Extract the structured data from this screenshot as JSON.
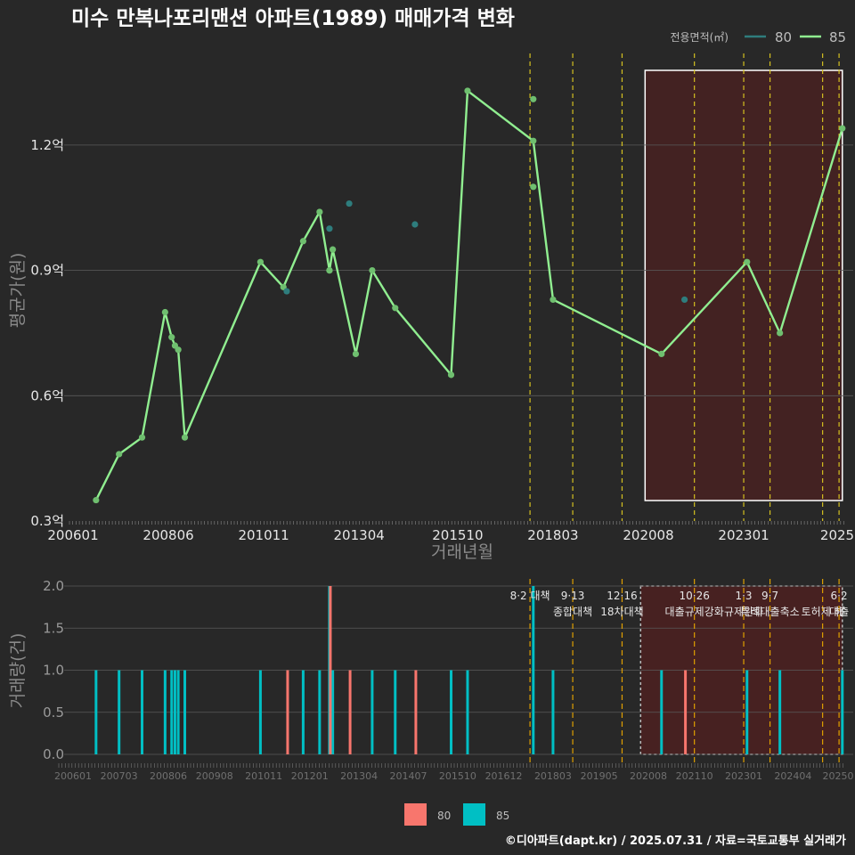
{
  "title": "미수 만복나포리맨션 아파트(1989) 매매가격 변화",
  "caption": "©디아파트(dapt.kr) / 2025.07.31 / 자료=국토교통부 실거래가",
  "colors": {
    "background": "#282828",
    "line85": "#90ee90",
    "point80": "#2e7d7d",
    "bar80": "#f8766d",
    "bar85": "#00bfc4",
    "highlight": "#4a2020",
    "policy": "#d4c020"
  },
  "chart_data": [
    {
      "type": "line",
      "xlabel": "거래년월",
      "ylabel": "평균가(원)",
      "ylim": [
        0.3,
        1.3
      ],
      "x_ticks": [
        "200601",
        "200806",
        "201011",
        "201304",
        "201510",
        "201803",
        "202008",
        "202301",
        "2025"
      ],
      "y_ticks": [
        "0.3억",
        "0.6억",
        "0.9억",
        "1.2억"
      ],
      "legend": {
        "title": "전용면적(㎡)",
        "entries": [
          "80",
          "85"
        ],
        "position": "top-right"
      },
      "series": [
        {
          "name": "85",
          "points": [
            [
              "2006-08",
              0.35
            ],
            [
              "2007-03",
              0.46
            ],
            [
              "2007-10",
              0.5
            ],
            [
              "2008-05",
              0.8
            ],
            [
              "2008-07",
              0.74
            ],
            [
              "2008-08",
              0.72
            ],
            [
              "2008-09",
              0.71
            ],
            [
              "2008-11",
              0.5
            ],
            [
              "2010-10",
              0.92
            ],
            [
              "2011-05",
              0.86
            ],
            [
              "2011-11",
              0.97
            ],
            [
              "2012-04",
              1.04
            ],
            [
              "2012-07",
              0.9
            ],
            [
              "2012-08",
              0.95
            ],
            [
              "2013-03",
              0.7
            ],
            [
              "2013-08",
              0.9
            ],
            [
              "2014-03",
              0.81
            ],
            [
              "2015-08",
              0.65
            ],
            [
              "2016-01",
              1.33
            ],
            [
              "2017-09",
              1.21
            ],
            [
              "2018-03",
              0.83
            ],
            [
              "2020-12",
              0.7
            ],
            [
              "2023-02",
              0.92
            ],
            [
              "2023-12",
              0.75
            ],
            [
              "2025-07",
              1.24
            ]
          ],
          "extra_points": [
            [
              "2017-09",
              1.31
            ],
            [
              "2017-09",
              1.1
            ],
            [
              "2012-07",
              0.9
            ]
          ]
        },
        {
          "name": "80",
          "points": [
            [
              "2011-06",
              0.85
            ],
            [
              "2012-07",
              1.0
            ],
            [
              "2013-01",
              1.06
            ],
            [
              "2014-09",
              1.01
            ],
            [
              "2021-07",
              0.83
            ]
          ]
        }
      ],
      "highlight_range": [
        "2020-07",
        "2025-07"
      ],
      "policy_lines": [
        "2017-08",
        "2018-09",
        "2019-12",
        "2021-10",
        "2023-01",
        "2023-09",
        "2025-01",
        "2025-06"
      ]
    },
    {
      "type": "bar",
      "ylabel": "거래량(건)",
      "ylim": [
        0,
        2
      ],
      "y_ticks": [
        "0.0",
        "0.5",
        "1.0",
        "1.5",
        "2.0"
      ],
      "x_ticks": [
        "200601",
        "200703",
        "200806",
        "200908",
        "201011",
        "201201",
        "201304",
        "201407",
        "201510",
        "201612",
        "201803",
        "201905",
        "202008",
        "202110",
        "202301",
        "202404",
        "20250"
      ],
      "legend": {
        "entries": [
          "80",
          "85"
        ],
        "position": "bottom"
      },
      "series": [
        {
          "name": "85",
          "bars": [
            [
              "2006-08",
              1
            ],
            [
              "2007-03",
              1
            ],
            [
              "2007-10",
              1
            ],
            [
              "2008-05",
              1
            ],
            [
              "2008-07",
              1
            ],
            [
              "2008-08",
              1
            ],
            [
              "2008-09",
              1
            ],
            [
              "2008-11",
              1
            ],
            [
              "2010-10",
              1
            ],
            [
              "2011-11",
              1
            ],
            [
              "2012-04",
              1
            ],
            [
              "2012-07",
              2
            ],
            [
              "2012-08",
              1
            ],
            [
              "2013-08",
              1
            ],
            [
              "2014-03",
              1
            ],
            [
              "2015-08",
              1
            ],
            [
              "2016-01",
              1
            ],
            [
              "2017-09",
              2
            ],
            [
              "2018-03",
              1
            ],
            [
              "2020-12",
              1
            ],
            [
              "2023-02",
              1
            ],
            [
              "2023-12",
              1
            ],
            [
              "2025-07",
              1
            ]
          ]
        },
        {
          "name": "80",
          "bars": [
            [
              "2011-06",
              1
            ],
            [
              "2012-07",
              2
            ],
            [
              "2013-01",
              1
            ],
            [
              "2014-09",
              1
            ],
            [
              "2021-07",
              1
            ]
          ]
        }
      ],
      "policy_labels": [
        {
          "date": "2017-08",
          "lines": [
            "8·2 대책"
          ]
        },
        {
          "date": "2018-09",
          "lines": [
            "9·13",
            "종합대책"
          ]
        },
        {
          "date": "2019-12",
          "lines": [
            "12·16",
            "18차대책"
          ]
        },
        {
          "date": "2021-10",
          "lines": [
            "10·26",
            "대출규제강화"
          ]
        },
        {
          "date": "2023-01",
          "lines": [
            "1·3",
            "규제완화"
          ]
        },
        {
          "date": "2023-09",
          "lines": [
            "9·7",
            "특례대출축소"
          ]
        },
        {
          "date": "2025-01",
          "lines": [
            "",
            "토허제 해"
          ]
        },
        {
          "date": "2025-06",
          "lines": [
            "6·2",
            "대출"
          ]
        }
      ]
    }
  ]
}
